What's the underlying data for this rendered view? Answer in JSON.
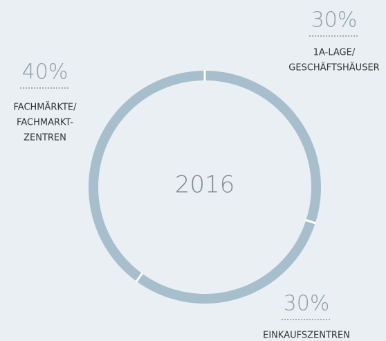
{
  "chart_data": {
    "type": "donut",
    "center_label": "2016",
    "categories": [
      [
        "1A-LAGE/",
        "GESCHÄFTSHÄUSER"
      ],
      [
        "EINKAUFSZENTREN"
      ],
      [
        "FACHMÄRKTE/",
        "FACHMARKT-",
        "ZENTREN"
      ]
    ],
    "values": [
      30,
      30,
      40
    ],
    "value_labels": [
      "30%",
      "30%",
      "40%"
    ],
    "color": "#a7bfcc"
  }
}
